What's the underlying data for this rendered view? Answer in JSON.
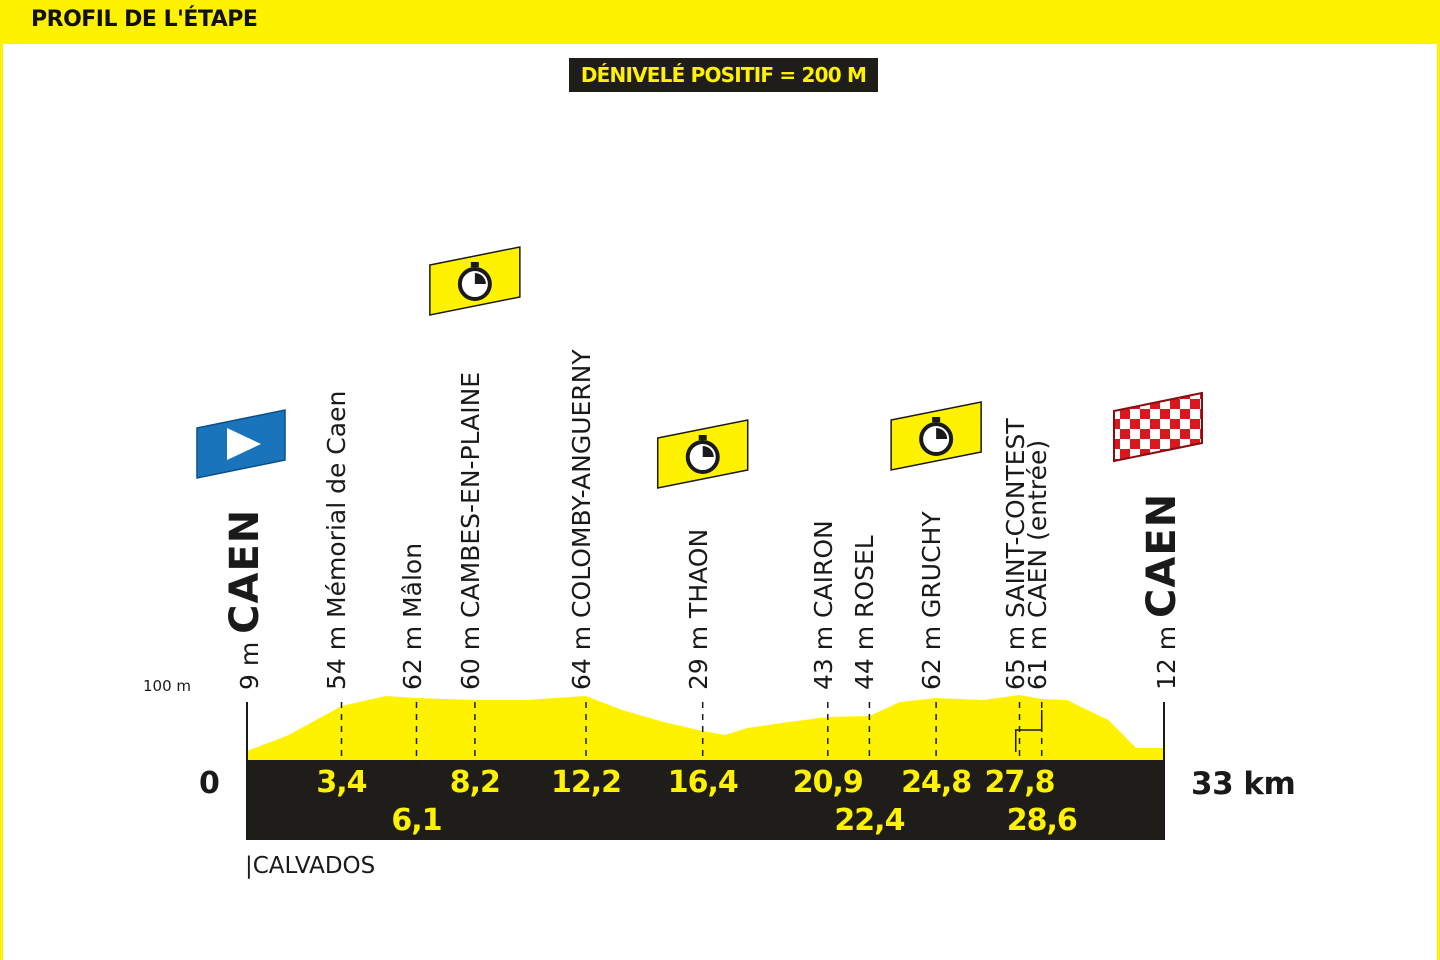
{
  "header": {
    "title": "PROFIL DE L'ÉTAPE"
  },
  "elevation_gain": "DÉNIVELÉ POSITIF = 200 M",
  "chart_data": {
    "type": "area",
    "title": "PROFIL DE L'ÉTAPE",
    "subtitle": "DÉNIVELÉ POSITIF = 200 M",
    "x_unit": "km",
    "y_unit": "m",
    "xlim": [
      0,
      33
    ],
    "ylim": [
      0,
      100
    ],
    "y_axis_label": "100 m",
    "x_start_label": "0",
    "x_end_label": "33 km",
    "profile": [
      [
        0,
        9
      ],
      [
        1.5,
        25
      ],
      [
        3.4,
        54
      ],
      [
        5,
        64
      ],
      [
        6.1,
        62
      ],
      [
        8.2,
        60
      ],
      [
        10,
        60
      ],
      [
        12.2,
        64
      ],
      [
        13.5,
        50
      ],
      [
        15,
        38
      ],
      [
        16.4,
        29
      ],
      [
        17.2,
        25
      ],
      [
        18,
        32
      ],
      [
        19.5,
        38
      ],
      [
        20.9,
        43
      ],
      [
        22.4,
        44
      ],
      [
        23.5,
        58
      ],
      [
        24.8,
        62
      ],
      [
        26.5,
        60
      ],
      [
        27.8,
        65
      ],
      [
        28.6,
        61
      ],
      [
        29.5,
        60
      ],
      [
        31,
        40
      ],
      [
        32,
        12
      ],
      [
        33,
        12
      ]
    ],
    "points": [
      {
        "km": "0",
        "alt": "9 m",
        "name": "CAEN",
        "emphasis": true
      },
      {
        "km": "3,4",
        "alt": "54 m",
        "name": "Mémorial de Caen"
      },
      {
        "km": "6,1",
        "alt": "62 m",
        "name": "Mâlon"
      },
      {
        "km": "8,2",
        "alt": "60 m",
        "name": "CAMBES-EN-PLAINE"
      },
      {
        "km": "12,2",
        "alt": "64 m",
        "name": "COLOMBY-ANGUERNY"
      },
      {
        "km": "16,4",
        "alt": "29 m",
        "name": "THAON"
      },
      {
        "km": "20,9",
        "alt": "43 m",
        "name": "CAIRON"
      },
      {
        "km": "22,4",
        "alt": "44 m",
        "name": "ROSEL"
      },
      {
        "km": "24,8",
        "alt": "62 m",
        "name": "GRUCHY"
      },
      {
        "km": "27,8",
        "alt": "65 m",
        "name": "SAINT-CONTEST"
      },
      {
        "km": "28,6",
        "alt": "61 m",
        "name": "CAEN (entrée)"
      },
      {
        "km": "33",
        "alt": "12 m",
        "name": "CAEN",
        "emphasis": true
      }
    ],
    "markers": [
      {
        "type": "start-flag",
        "km": 0
      },
      {
        "type": "time-check",
        "km": 8.2
      },
      {
        "type": "time-check",
        "km": 16.4
      },
      {
        "type": "time-check",
        "km": 24.8
      },
      {
        "type": "finish-flag",
        "km": 33
      }
    ],
    "region": "CALVADOS",
    "colors": {
      "profile": "#fff200",
      "base": "#1f1d1a",
      "start": "#1a74bb",
      "finish": "#d7191f"
    }
  }
}
